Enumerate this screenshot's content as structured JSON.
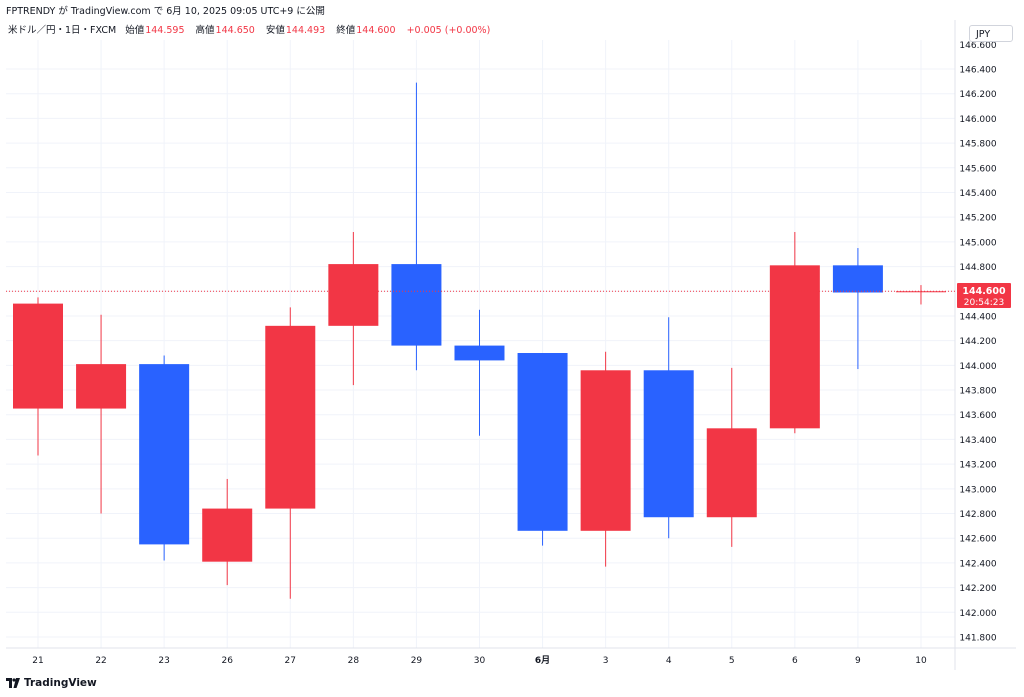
{
  "topbar": {
    "text": "FPTRENDY が TradingView.com で 6月 10, 2025 09:05 UTC+9 に公開"
  },
  "legend": {
    "symbol": "米ドル／円・1日・FXCM",
    "open_label": "始値",
    "open_value": "144.595",
    "high_label": "高値",
    "high_value": "144.650",
    "low_label": "安値",
    "low_value": "144.493",
    "close_label": "終値",
    "close_value": "144.600",
    "change": "+0.005 (+0.00%)"
  },
  "currency": "JPY",
  "price_badge": {
    "price": "144.600",
    "countdown": "20:54:23"
  },
  "footer": {
    "brand": "TradingView"
  },
  "colors": {
    "up": "#f23645",
    "down": "#2962ff",
    "grid": "#f0f3fa",
    "current_line": "#f23645"
  },
  "chart_data": {
    "type": "candlestick",
    "symbol": "USD/JPY",
    "ylim": [
      141.7,
      146.5
    ],
    "y_ticks": [
      141.8,
      142.0,
      142.2,
      142.4,
      142.6,
      142.8,
      143.0,
      143.2,
      143.4,
      143.6,
      143.8,
      144.0,
      144.2,
      144.4,
      144.6,
      144.8,
      145.0,
      145.2,
      145.4,
      145.6,
      145.8,
      146.0,
      146.2,
      146.4
    ],
    "x_labels": [
      "21",
      "22",
      "23",
      "26",
      "27",
      "28",
      "29",
      "30",
      "6月",
      "3",
      "4",
      "5",
      "6",
      "9",
      "10"
    ],
    "current_price": 144.6,
    "candles": [
      {
        "x": "21",
        "open": 143.65,
        "high": 144.55,
        "low": 143.27,
        "close": 144.5
      },
      {
        "x": "22",
        "open": 143.65,
        "high": 144.41,
        "low": 142.8,
        "close": 144.01
      },
      {
        "x": "23",
        "open": 144.01,
        "high": 144.08,
        "low": 142.42,
        "close": 142.55
      },
      {
        "x": "26",
        "open": 142.41,
        "high": 143.08,
        "low": 142.22,
        "close": 142.84
      },
      {
        "x": "27",
        "open": 142.84,
        "high": 144.47,
        "low": 142.11,
        "close": 144.32
      },
      {
        "x": "28",
        "open": 144.32,
        "high": 145.08,
        "low": 143.84,
        "close": 144.82
      },
      {
        "x": "29",
        "open": 144.82,
        "high": 146.29,
        "low": 143.96,
        "close": 144.16
      },
      {
        "x": "30",
        "open": 144.16,
        "high": 144.45,
        "low": 143.43,
        "close": 144.04
      },
      {
        "x": "6月",
        "open": 144.1,
        "high": 144.1,
        "low": 142.54,
        "close": 142.66
      },
      {
        "x": "3",
        "open": 142.66,
        "high": 144.11,
        "low": 142.37,
        "close": 143.96
      },
      {
        "x": "4",
        "open": 143.96,
        "high": 144.39,
        "low": 142.6,
        "close": 142.77
      },
      {
        "x": "5",
        "open": 142.77,
        "high": 143.98,
        "low": 142.53,
        "close": 143.49
      },
      {
        "x": "6",
        "open": 143.49,
        "high": 145.08,
        "low": 143.45,
        "close": 144.81
      },
      {
        "x": "9",
        "open": 144.81,
        "high": 144.95,
        "low": 143.97,
        "close": 144.59
      },
      {
        "x": "10",
        "open": 144.595,
        "high": 144.65,
        "low": 144.493,
        "close": 144.6
      }
    ]
  }
}
